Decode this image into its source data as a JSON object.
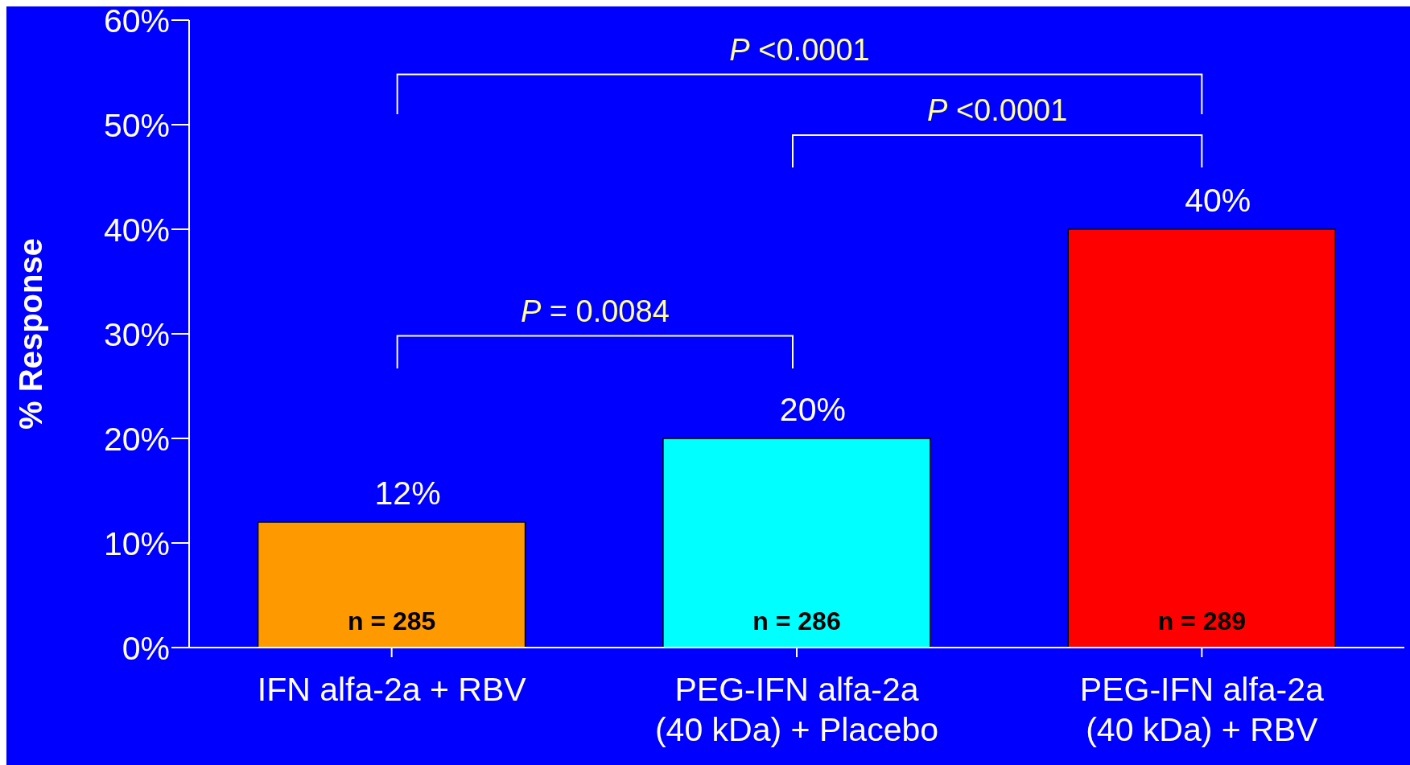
{
  "chart_data": {
    "type": "bar",
    "ylabel": "% Response",
    "categories": [
      "IFN alfa-2a + RBV",
      "PEG-IFN alfa-2a\n(40 kDa) + Placebo",
      "PEG-IFN alfa-2a\n(40 kDa) + RBV"
    ],
    "values": [
      12,
      20,
      40
    ],
    "colors": [
      "#ff9900",
      "#00ffff",
      "#ff0000"
    ],
    "value_labels": [
      "12%",
      "20%",
      "40%"
    ],
    "ylim": [
      0,
      60
    ],
    "yticks": [
      {
        "value": 0,
        "label": "0%"
      },
      {
        "value": 10,
        "label": "10%"
      },
      {
        "value": 20,
        "label": "20%"
      },
      {
        "value": 30,
        "label": "30%"
      },
      {
        "value": 40,
        "label": "40%"
      },
      {
        "value": 50,
        "label": "50%"
      },
      {
        "value": 60,
        "label": "60%"
      }
    ],
    "annotations": [
      "P <0.0001",
      "P <0.0001",
      "P = 0.0084",
      "n = 285",
      "n = 286",
      "n = 289"
    ],
    "grid": false,
    "legend": false
  }
}
